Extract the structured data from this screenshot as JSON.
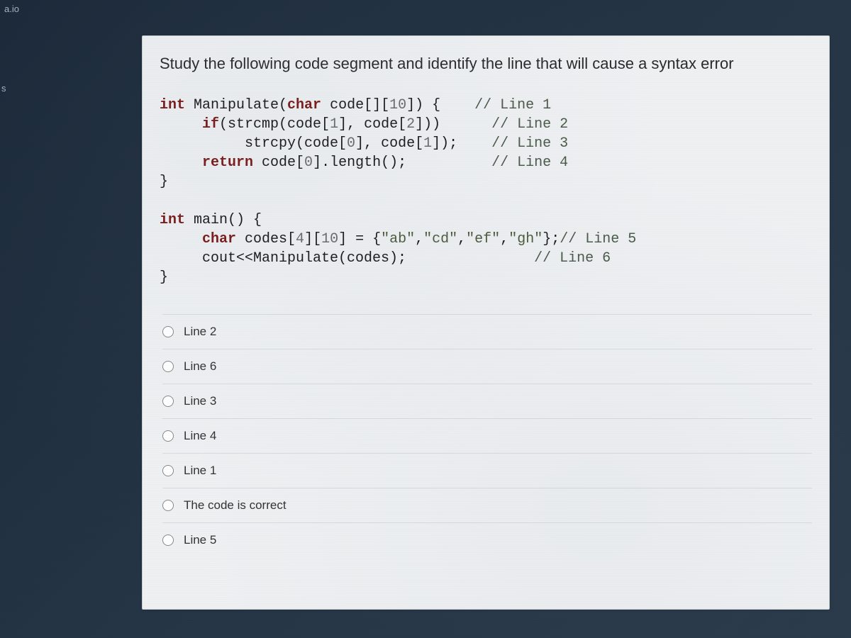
{
  "fragments": {
    "top": "a.io",
    "side": "s"
  },
  "question": {
    "prompt": "Study the following code segment and identify the line that will cause a syntax error",
    "code_lines": [
      {
        "indent": 0,
        "tokens": [
          {
            "t": "kw",
            "v": "int"
          },
          {
            "t": "",
            "v": " Manipulate("
          },
          {
            "t": "kw",
            "v": "char"
          },
          {
            "t": "",
            "v": " code[]["
          },
          {
            "t": "num",
            "v": "10"
          },
          {
            "t": "",
            "v": "]) {"
          }
        ],
        "comment": "// Line 1",
        "pad": 4
      },
      {
        "indent": 1,
        "tokens": [
          {
            "t": "kw",
            "v": "if"
          },
          {
            "t": "",
            "v": "(strcmp(code["
          },
          {
            "t": "num",
            "v": "1"
          },
          {
            "t": "",
            "v": "], code["
          },
          {
            "t": "num",
            "v": "2"
          },
          {
            "t": "",
            "v": "]))"
          }
        ],
        "comment": "// Line 2",
        "pad": 6
      },
      {
        "indent": 2,
        "tokens": [
          {
            "t": "",
            "v": "strcpy(code["
          },
          {
            "t": "num",
            "v": "0"
          },
          {
            "t": "",
            "v": "], code["
          },
          {
            "t": "num",
            "v": "1"
          },
          {
            "t": "",
            "v": "]);"
          }
        ],
        "comment": "// Line 3",
        "pad": 4
      },
      {
        "indent": 1,
        "tokens": [
          {
            "t": "kw",
            "v": "return"
          },
          {
            "t": "",
            "v": " code["
          },
          {
            "t": "num",
            "v": "0"
          },
          {
            "t": "",
            "v": "].length();"
          }
        ],
        "comment": "// Line 4",
        "pad": 10
      },
      {
        "indent": 0,
        "tokens": [
          {
            "t": "",
            "v": "}"
          }
        ],
        "comment": "",
        "pad": 0
      },
      {
        "indent": 0,
        "tokens": [
          {
            "t": "",
            "v": ""
          }
        ],
        "comment": "",
        "pad": 0
      },
      {
        "indent": 0,
        "tokens": [
          {
            "t": "kw",
            "v": "int"
          },
          {
            "t": "",
            "v": " main() {"
          }
        ],
        "comment": "",
        "pad": 0
      },
      {
        "indent": 1,
        "tokens": [
          {
            "t": "kw",
            "v": "char"
          },
          {
            "t": "",
            "v": " codes["
          },
          {
            "t": "num",
            "v": "4"
          },
          {
            "t": "",
            "v": "]["
          },
          {
            "t": "num",
            "v": "10"
          },
          {
            "t": "",
            "v": "] = {"
          },
          {
            "t": "str",
            "v": "\"ab\""
          },
          {
            "t": "",
            "v": ","
          },
          {
            "t": "str",
            "v": "\"cd\""
          },
          {
            "t": "",
            "v": ","
          },
          {
            "t": "str",
            "v": "\"ef\""
          },
          {
            "t": "",
            "v": ","
          },
          {
            "t": "str",
            "v": "\"gh\""
          },
          {
            "t": "",
            "v": "};"
          }
        ],
        "comment": "// Line 5",
        "pad": 0
      },
      {
        "indent": 1,
        "tokens": [
          {
            "t": "",
            "v": "cout<<Manipulate(codes);"
          }
        ],
        "comment": "// Line 6",
        "pad": 15
      },
      {
        "indent": 0,
        "tokens": [
          {
            "t": "",
            "v": "}"
          }
        ],
        "comment": "",
        "pad": 0
      }
    ],
    "options": [
      {
        "id": "opt-line2",
        "label": "Line 2"
      },
      {
        "id": "opt-line6",
        "label": "Line 6"
      },
      {
        "id": "opt-line3",
        "label": "Line 3"
      },
      {
        "id": "opt-line4",
        "label": "Line 4"
      },
      {
        "id": "opt-line1",
        "label": "Line 1"
      },
      {
        "id": "opt-correct",
        "label": "The code is correct"
      },
      {
        "id": "opt-line5",
        "label": "Line 5"
      }
    ]
  },
  "styling": {
    "panel_bg": "#eef0f2",
    "panel_border": "#c8ccd0",
    "body_bg_start": "#1a2838",
    "body_bg_end": "#2a3a4a",
    "question_fontsize": 22,
    "code_fontsize": 20,
    "option_fontsize": 17,
    "kw_color": "#7a1a1a",
    "num_color": "#6a6a6a",
    "str_color": "#4a5a3a",
    "cmt_color": "#4a5a4a",
    "divider_color": "#d8dce0",
    "radio_border": "#888888"
  }
}
